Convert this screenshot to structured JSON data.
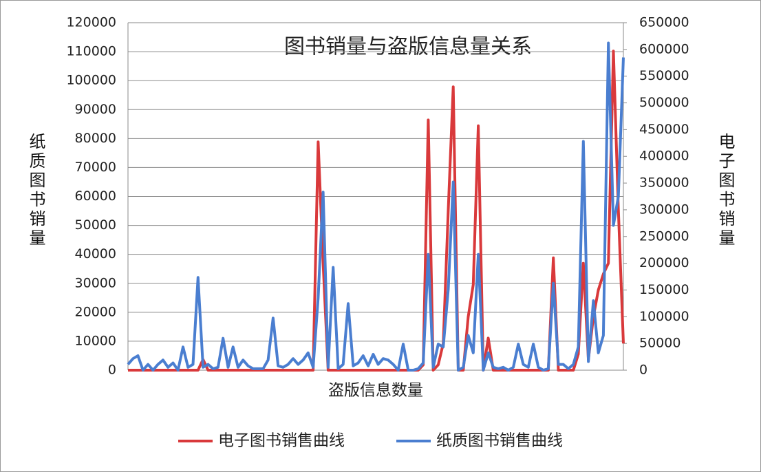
{
  "chart_data": {
    "type": "line",
    "title": "图书销量与盗版信息量关系",
    "xlabel": "盗版信息数量",
    "ylabel": "纸质图书销量",
    "y2label": "电子图书销量",
    "categories": [
      null,
      null,
      null,
      null,
      null,
      null,
      null,
      null,
      null,
      null,
      null,
      null,
      null,
      null,
      null,
      null,
      null,
      null,
      null,
      null,
      null,
      null,
      null,
      null,
      null,
      null,
      null,
      null,
      null,
      null,
      null,
      null,
      null,
      null,
      null,
      null,
      null,
      null,
      null,
      null,
      null,
      null,
      null,
      null,
      null,
      null,
      null,
      null,
      null,
      null,
      null,
      null,
      null,
      null,
      null,
      null,
      null,
      null,
      null,
      null,
      null,
      null,
      null,
      null,
      null,
      null,
      null,
      null,
      null,
      null,
      null,
      null,
      null,
      null,
      null,
      null,
      null,
      null,
      null,
      null,
      null,
      null,
      null,
      null,
      null,
      null,
      null,
      null,
      null,
      null,
      null,
      null,
      null,
      null,
      null,
      null,
      null,
      null,
      null,
      null
    ],
    "ylim": [
      0,
      120000
    ],
    "yticks": [
      0,
      10000,
      20000,
      30000,
      40000,
      50000,
      60000,
      70000,
      80000,
      90000,
      100000,
      110000,
      120000
    ],
    "y2lim": [
      0,
      650000
    ],
    "y2ticks": [
      0,
      50000,
      100000,
      150000,
      200000,
      250000,
      300000,
      350000,
      400000,
      450000,
      500000,
      550000,
      600000,
      650000
    ],
    "grid": true,
    "legend": "bottom",
    "series": [
      {
        "name": "电子图书销售曲线",
        "color": "#d9393b",
        "axis": "y2",
        "values": [
          0,
          0,
          0,
          0,
          0,
          0,
          0,
          0,
          0,
          0,
          0,
          0,
          0,
          0,
          0,
          20000,
          0,
          0,
          0,
          0,
          0,
          0,
          0,
          0,
          0,
          0,
          0,
          0,
          0,
          0,
          0,
          0,
          0,
          0,
          0,
          0,
          0,
          0,
          427000,
          200000,
          0,
          0,
          0,
          0,
          0,
          0,
          0,
          0,
          0,
          0,
          0,
          0,
          0,
          0,
          0,
          0,
          0,
          0,
          0,
          10000,
          468000,
          0,
          10000,
          50000,
          300000,
          530000,
          0,
          0,
          100000,
          160000,
          457000,
          0,
          60000,
          0,
          0,
          0,
          0,
          0,
          0,
          0,
          0,
          0,
          0,
          0,
          0,
          210000,
          0,
          0,
          0,
          0,
          30000,
          200000,
          20000,
          100000,
          150000,
          180000,
          200000,
          597000,
          300000,
          50000
        ]
      },
      {
        "name": "纸质图书销售曲线",
        "color": "#4a7ed0",
        "values": [
          2000,
          4000,
          5000,
          0,
          2000,
          0,
          2000,
          3500,
          1000,
          2500,
          0,
          8000,
          1000,
          2000,
          32000,
          1000,
          2000,
          500,
          1000,
          11000,
          1000,
          8000,
          1000,
          3500,
          1500,
          500,
          500,
          500,
          3500,
          18000,
          1500,
          1000,
          2000,
          4000,
          2000,
          3500,
          6000,
          1000,
          25000,
          61500,
          1000,
          35500,
          500,
          2000,
          23000,
          1500,
          2500,
          5000,
          1500,
          5500,
          2000,
          4000,
          3500,
          2000,
          0,
          9000,
          0,
          0,
          500,
          2500,
          40000,
          1000,
          9000,
          8000,
          28000,
          65000,
          0,
          1000,
          12000,
          6000,
          40000,
          0,
          6000,
          1000,
          500,
          1000,
          0,
          1000,
          9000,
          2000,
          1000,
          9000,
          1000,
          0,
          500,
          30000,
          2000,
          2000,
          500,
          2000,
          8000,
          79000,
          3000,
          24000,
          6000,
          12000,
          113000,
          50000,
          60000,
          108000
        ]
      }
    ]
  }
}
